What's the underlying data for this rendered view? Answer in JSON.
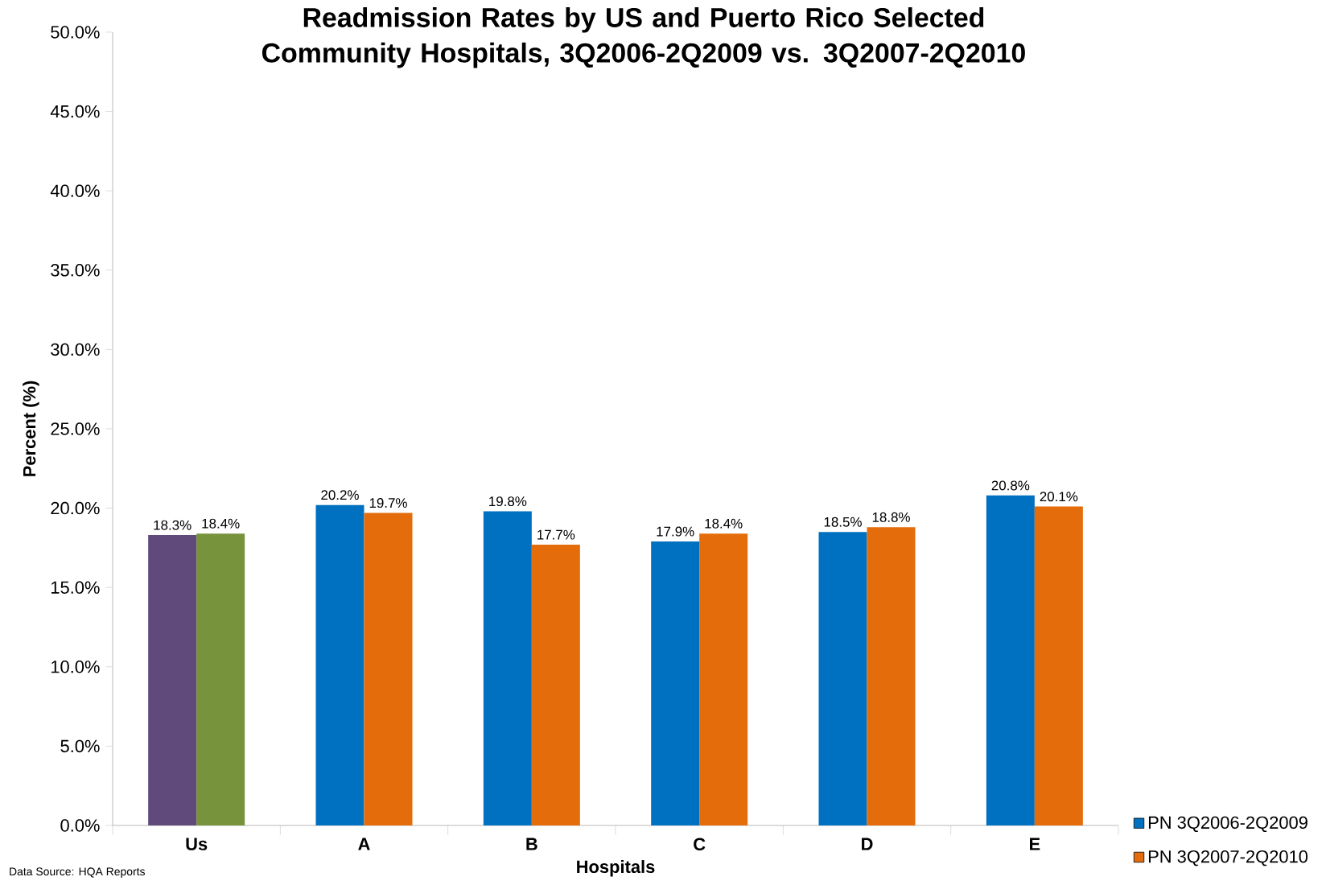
{
  "chart_data": {
    "type": "bar",
    "title": "Readmission Rates by US and Puerto Rico Selected Community Hospitals, 3Q2006-2Q2009 vs. 3Q2007-2Q2010",
    "xlabel": "Hospitals",
    "ylabel": "Percent (%)",
    "categories": [
      "Us",
      "A",
      "B",
      "C",
      "D",
      "E"
    ],
    "series": [
      {
        "name": "PN 3Q2006-2Q2009",
        "color": "#0070c0",
        "colors": [
          "#604a7b",
          "#0070c0",
          "#0070c0",
          "#0070c0",
          "#0070c0",
          "#0070c0"
        ],
        "values": [
          18.3,
          20.2,
          19.8,
          17.9,
          18.5,
          20.8
        ],
        "value_labels": [
          "18.3%",
          "20.2%",
          "19.8%",
          "17.9%",
          "18.5%",
          "20.8%"
        ]
      },
      {
        "name": "PN 3Q2007-2Q2010",
        "color": "#e46c0a",
        "colors": [
          "#77933c",
          "#e46c0a",
          "#e46c0a",
          "#e46c0a",
          "#e46c0a",
          "#e46c0a"
        ],
        "values": [
          18.4,
          19.7,
          17.7,
          18.4,
          18.8,
          20.1
        ],
        "value_labels": [
          "18.4%",
          "19.7%",
          "17.7%",
          "18.4%",
          "18.8%",
          "20.1%"
        ]
      }
    ],
    "ylim": [
      0,
      50
    ],
    "yticks": [
      {
        "value": 0,
        "label": "0.0%"
      },
      {
        "value": 5,
        "label": "5.0%"
      },
      {
        "value": 10,
        "label": "10.0%"
      },
      {
        "value": 15,
        "label": "15.0%"
      },
      {
        "value": 20,
        "label": "20.0%"
      },
      {
        "value": 25,
        "label": "25.0%"
      },
      {
        "value": 30,
        "label": "30.0%"
      },
      {
        "value": 35,
        "label": "35.0%"
      },
      {
        "value": 40,
        "label": "40.0%"
      },
      {
        "value": 45,
        "label": "45.0%"
      },
      {
        "value": 50,
        "label": "50.0%"
      }
    ],
    "legend": "bottom right",
    "annotations": [
      "Data Source: HQA Reports"
    ]
  }
}
